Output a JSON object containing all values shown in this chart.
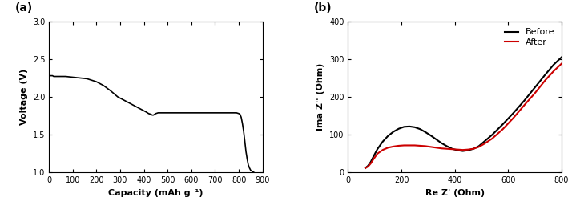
{
  "panel_a": {
    "title": "(a)",
    "xlabel": "Capacity (mAh g⁻¹)",
    "ylabel": "Voltage (V)",
    "xlim": [
      0,
      900
    ],
    "ylim": [
      1.0,
      3.0
    ],
    "xticks": [
      0,
      100,
      200,
      300,
      400,
      500,
      600,
      700,
      800,
      900
    ],
    "yticks": [
      1.0,
      1.5,
      2.0,
      2.5,
      3.0
    ],
    "line_color": "#000000",
    "line_width": 1.2,
    "curve": {
      "x": [
        0,
        5,
        10,
        15,
        20,
        30,
        50,
        70,
        100,
        130,
        160,
        180,
        200,
        230,
        260,
        290,
        320,
        350,
        380,
        410,
        420,
        430,
        435,
        440,
        445,
        450,
        455,
        460,
        470,
        480,
        490,
        500,
        550,
        600,
        650,
        700,
        750,
        790,
        795,
        800,
        805,
        810,
        815,
        820,
        825,
        830,
        835,
        840,
        845,
        850,
        855,
        860,
        865
      ],
      "y": [
        2.27,
        2.28,
        2.28,
        2.28,
        2.27,
        2.27,
        2.27,
        2.27,
        2.26,
        2.25,
        2.24,
        2.22,
        2.2,
        2.15,
        2.08,
        2.0,
        1.95,
        1.9,
        1.85,
        1.8,
        1.78,
        1.77,
        1.76,
        1.76,
        1.77,
        1.78,
        1.785,
        1.79,
        1.79,
        1.79,
        1.79,
        1.79,
        1.79,
        1.79,
        1.79,
        1.79,
        1.79,
        1.79,
        1.785,
        1.78,
        1.77,
        1.73,
        1.65,
        1.55,
        1.42,
        1.28,
        1.18,
        1.1,
        1.06,
        1.03,
        1.02,
        1.01,
        1.0
      ]
    }
  },
  "panel_b": {
    "title": "(b)",
    "xlabel": "Re Z' (Ohm)",
    "ylabel": "Ima Z'' (Ohm)",
    "xlim": [
      0,
      800
    ],
    "ylim": [
      0,
      400
    ],
    "xticks": [
      0,
      200,
      400,
      600,
      800
    ],
    "yticks": [
      0,
      100,
      200,
      300,
      400
    ],
    "before": {
      "color": "#000000",
      "label": "Before",
      "line_width": 1.5,
      "x": [
        65,
        75,
        85,
        95,
        110,
        130,
        150,
        170,
        190,
        210,
        230,
        250,
        270,
        290,
        310,
        330,
        350,
        370,
        390,
        410,
        430,
        450,
        470,
        490,
        510,
        540,
        580,
        620,
        660,
        700,
        740,
        770,
        800
      ],
      "y": [
        12,
        18,
        28,
        42,
        62,
        82,
        97,
        108,
        116,
        121,
        122,
        120,
        115,
        107,
        98,
        88,
        78,
        70,
        63,
        59,
        57,
        59,
        63,
        70,
        82,
        100,
        128,
        158,
        190,
        225,
        260,
        285,
        305
      ]
    },
    "after": {
      "color": "#cc0000",
      "label": "After",
      "line_width": 1.5,
      "x": [
        65,
        75,
        85,
        95,
        110,
        130,
        150,
        170,
        190,
        210,
        230,
        250,
        270,
        290,
        310,
        330,
        350,
        370,
        390,
        410,
        430,
        450,
        470,
        490,
        510,
        540,
        580,
        620,
        660,
        700,
        740,
        770,
        800
      ],
      "y": [
        12,
        16,
        24,
        35,
        50,
        60,
        66,
        69,
        71,
        72,
        72,
        72,
        71,
        70,
        68,
        66,
        64,
        63,
        62,
        61,
        60,
        61,
        63,
        68,
        76,
        90,
        115,
        145,
        178,
        210,
        245,
        268,
        288
      ]
    },
    "legend_loc": "upper right"
  },
  "figure": {
    "bg_color": "#ffffff",
    "panel_label_fontsize": 10,
    "axis_label_fontsize": 8,
    "tick_label_fontsize": 7
  }
}
